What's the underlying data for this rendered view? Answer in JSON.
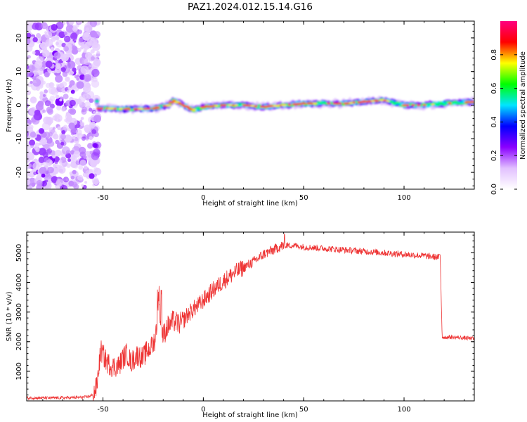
{
  "title": "PAZ1.2024.012.15.14.G16",
  "colorbar": {
    "label": "Normalized spectral amplitude",
    "ticks": [
      "0.0",
      "0.2",
      "0.4",
      "0.6",
      "0.8"
    ],
    "tick_values": [
      0.0,
      0.2,
      0.4,
      0.6,
      0.8
    ],
    "range": [
      0,
      1
    ],
    "colormap": [
      "#ffffff",
      "#e2c0ff",
      "#8a00ff",
      "#0000ff",
      "#00e5ff",
      "#00ff00",
      "#ffff00",
      "#ff0000",
      "#ff0080"
    ]
  },
  "chart_data": [
    {
      "type": "heatmap",
      "xlabel": "Height of straight line (km)",
      "ylabel": "Frequency (Hz)",
      "xlim": [
        -88,
        135
      ],
      "ylim": [
        -25,
        25
      ],
      "xticks": [
        -50,
        0,
        50,
        100
      ],
      "yticks": [
        -20,
        -10,
        0,
        10,
        20
      ],
      "noise_region_x": [
        -88,
        -53
      ],
      "signal_start_x": -53,
      "ridge": {
        "x": [
          -53,
          -45,
          -35,
          -25,
          -17,
          -15,
          -10,
          -5,
          0,
          10,
          20,
          30,
          40,
          50,
          60,
          70,
          80,
          90,
          100,
          110,
          120,
          135
        ],
        "y": [
          -1,
          -1,
          -1.2,
          -1,
          0,
          1.5,
          0,
          -1.5,
          -0.5,
          0,
          0,
          -0.5,
          0,
          0.5,
          0.5,
          0.5,
          1,
          1.5,
          0,
          0,
          0.5,
          1
        ]
      }
    },
    {
      "type": "line",
      "xlabel": "Height of straight line (km)",
      "ylabel": "SNR (10 * v/v)",
      "xlim": [
        -88,
        135
      ],
      "ylim": [
        0,
        5700
      ],
      "xticks": [
        -50,
        0,
        50,
        100
      ],
      "yticks": [
        1000,
        2000,
        3000,
        4000,
        5000
      ],
      "color": "#ee3333",
      "series": [
        {
          "x": [
            -88,
            -75,
            -65,
            -58,
            -55,
            -53,
            -52,
            -51,
            -48,
            -45,
            -42,
            -40,
            -38,
            -36,
            -33,
            -30,
            -28,
            -26,
            -24,
            -22,
            -21,
            -20,
            -18,
            -15,
            -12,
            -10,
            -8,
            -5,
            -2,
            0,
            5,
            10,
            15,
            20,
            25,
            30,
            35,
            38,
            40,
            45,
            50,
            60,
            70,
            80,
            90,
            100,
            110,
            117,
            118,
            119,
            125,
            135
          ],
          "y": [
            100,
            100,
            110,
            130,
            200,
            500,
            1200,
            1700,
            1300,
            1150,
            1200,
            1450,
            1600,
            1300,
            1550,
            1450,
            1700,
            1800,
            2100,
            3300,
            2600,
            2200,
            2500,
            2700,
            2600,
            2700,
            2900,
            3100,
            3250,
            3400,
            3750,
            4050,
            4300,
            4500,
            4700,
            4950,
            5100,
            5200,
            5250,
            5250,
            5200,
            5150,
            5100,
            5050,
            5000,
            4950,
            4900,
            4850,
            4900,
            2150,
            2150,
            2100
          ]
        }
      ]
    }
  ]
}
